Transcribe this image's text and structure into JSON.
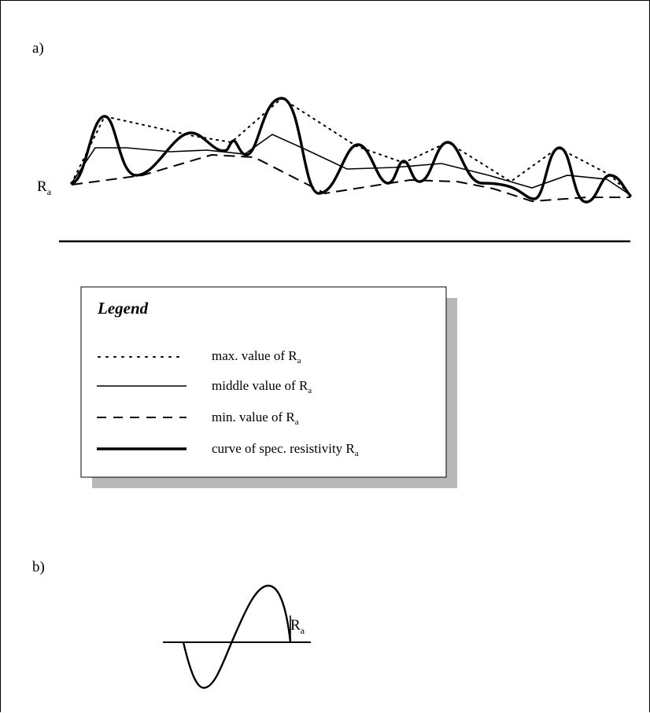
{
  "panel_a": {
    "label": "a)",
    "axis_label": {
      "main": "R",
      "sub": "a"
    }
  },
  "legend": {
    "title": "Legend",
    "entries": [
      {
        "key": "max",
        "text": "max. value of R",
        "sub": "a",
        "style": "dotted"
      },
      {
        "key": "middle",
        "text": "middle value of R",
        "sub": "a",
        "style": "solid-thin"
      },
      {
        "key": "min",
        "text": "min. value of R",
        "sub": "a",
        "style": "dashed"
      },
      {
        "key": "curve",
        "text": "curve of spec. resistivity R",
        "sub": "a",
        "style": "solid-thick"
      }
    ]
  },
  "panel_b": {
    "label": "b)",
    "amplitude_label": {
      "main": "R",
      "sub": "a"
    }
  },
  "colors": {
    "line": "#000000",
    "shadow": "#b8b8b8",
    "background": "#ffffff"
  }
}
